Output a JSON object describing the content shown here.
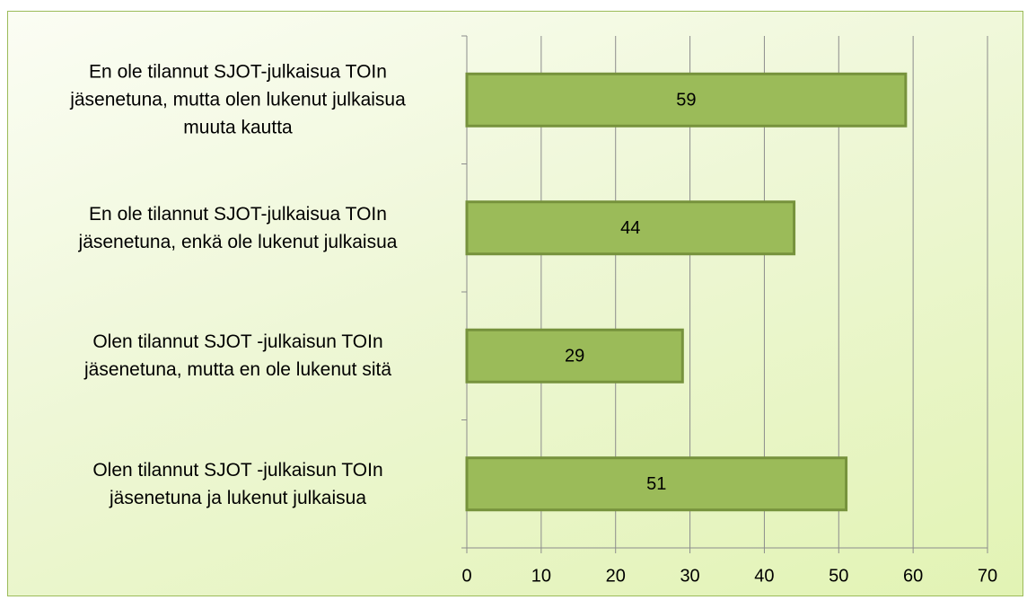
{
  "chart_data": {
    "type": "barh",
    "categories": [
      "En ole tilannut SJOT-julkaisua TOIn\njäsenetuna, mutta olen lukenut julkaisua\nmuuta kautta",
      "En ole tilannut SJOT-julkaisua TOIn\njäsenetuna, enkä ole lukenut julkaisua",
      "Olen tilannut SJOT -julkaisun TOIn\njäsenetuna, mutta en ole lukenut sitä",
      "Olen tilannut SJOT -julkaisun TOIn\njäsenetuna ja lukenut julkaisua"
    ],
    "values": [
      59,
      44,
      29,
      51
    ],
    "color": "#9bbb59",
    "edge_color": "#76923c",
    "xlim": [
      0,
      70
    ],
    "xticks": [
      0,
      10,
      20,
      30,
      40,
      50,
      60,
      70
    ],
    "grid": true
  }
}
